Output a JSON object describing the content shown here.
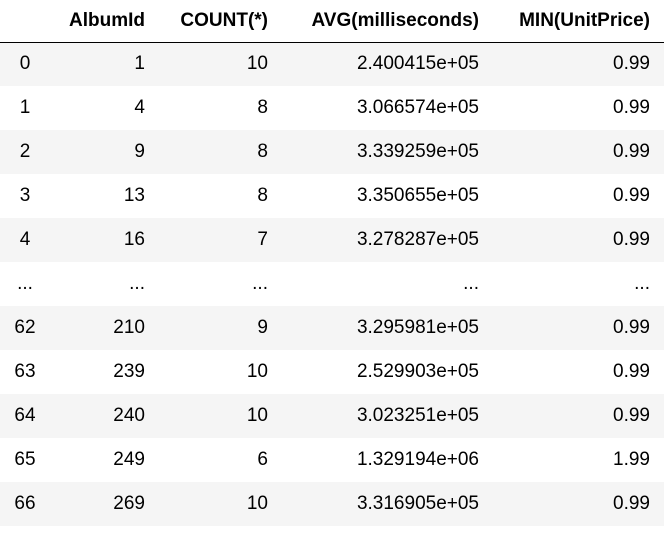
{
  "table": {
    "columns": [
      "",
      "AlbumId",
      "COUNT(*)",
      "AVG(milliseconds)",
      "MIN(UnitPrice)"
    ],
    "rows": [
      [
        "0",
        "1",
        "10",
        "2.400415e+05",
        "0.99"
      ],
      [
        "1",
        "4",
        "8",
        "3.066574e+05",
        "0.99"
      ],
      [
        "2",
        "9",
        "8",
        "3.339259e+05",
        "0.99"
      ],
      [
        "3",
        "13",
        "8",
        "3.350655e+05",
        "0.99"
      ],
      [
        "4",
        "16",
        "7",
        "3.278287e+05",
        "0.99"
      ],
      [
        "...",
        "...",
        "...",
        "...",
        "..."
      ],
      [
        "62",
        "210",
        "9",
        "3.295981e+05",
        "0.99"
      ],
      [
        "63",
        "239",
        "10",
        "2.529903e+05",
        "0.99"
      ],
      [
        "64",
        "240",
        "10",
        "3.023251e+05",
        "0.99"
      ],
      [
        "65",
        "249",
        "6",
        "1.329194e+06",
        "1.99"
      ],
      [
        "66",
        "269",
        "10",
        "3.316905e+05",
        "0.99"
      ]
    ]
  }
}
